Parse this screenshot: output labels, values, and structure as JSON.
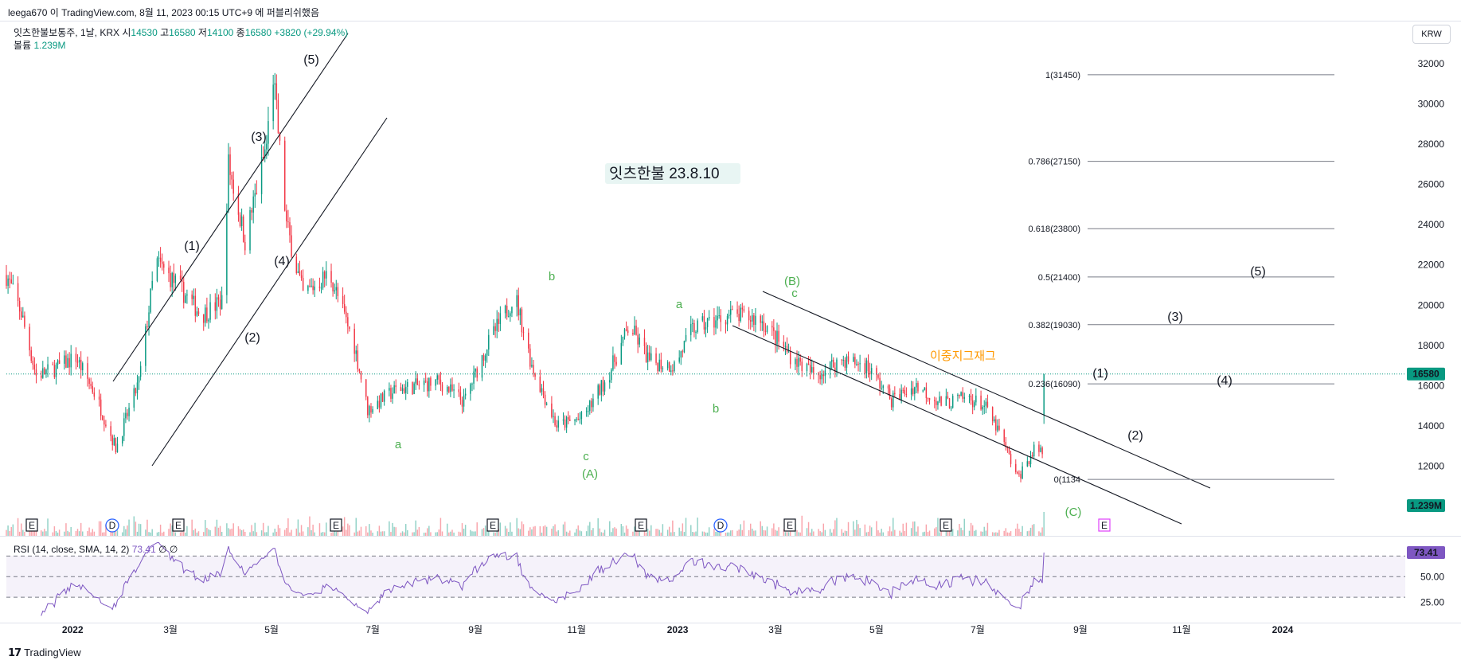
{
  "header": {
    "published": "leega670 이 TradingView.com, 8월 11, 2023 00:15 UTC+9 에 퍼블리쉬했음"
  },
  "legend": {
    "symbol": "잇츠한불보통주, 1날, KRX",
    "open_label": "시",
    "open": "14530",
    "high_label": "고",
    "high": "16580",
    "low_label": "저",
    "low": "14100",
    "close_label": "종",
    "close": "16580",
    "change": "+3820 (+29.94%)",
    "volume_label": "볼륨",
    "volume": "1.239M"
  },
  "rsi_legend": {
    "label": "RSI (14, close, SMA, 14, 2)",
    "value": "73.41",
    "extra": "∅ ∅"
  },
  "currency_button": "KRW",
  "footer": {
    "brand": "TradingView"
  },
  "colors": {
    "up": "#089981",
    "down": "#f23645",
    "rsi": "#7e57c2",
    "annotation_green": "#4caf50",
    "annotation_orange": "#ff9800"
  },
  "chart_data": {
    "type": "candlestick",
    "title": "잇츠한불 23.8.10",
    "symbol": "잇츠한불보통주",
    "interval": "1날",
    "x_labels": [
      "2022",
      "3월",
      "5월",
      "7월",
      "9월",
      "11월",
      "2023",
      "3월",
      "5월",
      "7월",
      "9월",
      "11월",
      "2024"
    ],
    "y_ticks": [
      10000,
      12000,
      14000,
      16000,
      18000,
      20000,
      22000,
      24000,
      26000,
      28000,
      30000,
      32000
    ],
    "ylim": [
      9200,
      32600
    ],
    "last_price": "16580",
    "volume_last": "1.239M",
    "price_path": [
      [
        "2021-11-22",
        21500
      ],
      [
        "2021-12-01",
        19600
      ],
      [
        "2021-12-10",
        16500
      ],
      [
        "2021-12-20",
        16800
      ],
      [
        "2022-01-03",
        17400
      ],
      [
        "2022-01-15",
        15500
      ],
      [
        "2022-01-27",
        12900
      ],
      [
        "2022-02-10",
        16200
      ],
      [
        "2022-02-20",
        22200
      ],
      [
        "2022-03-05",
        21000
      ],
      [
        "2022-03-20",
        19500
      ],
      [
        "2022-04-01",
        20200
      ],
      [
        "2022-04-05",
        27000
      ],
      [
        "2022-04-15",
        23200
      ],
      [
        "2022-04-28",
        28000
      ],
      [
        "2022-05-02",
        31400
      ],
      [
        "2022-05-10",
        24000
      ],
      [
        "2022-05-20",
        20500
      ],
      [
        "2022-06-05",
        21600
      ],
      [
        "2022-06-20",
        18000
      ],
      [
        "2022-06-28",
        14800
      ],
      [
        "2022-07-15",
        15800
      ],
      [
        "2022-08-10",
        16200
      ],
      [
        "2022-08-25",
        15200
      ],
      [
        "2022-09-08",
        18000
      ],
      [
        "2022-09-25",
        20500
      ],
      [
        "2022-10-05",
        17000
      ],
      [
        "2022-10-20",
        14000
      ],
      [
        "2022-11-05",
        14400
      ],
      [
        "2022-11-20",
        16500
      ],
      [
        "2022-12-03",
        19000
      ],
      [
        "2022-12-15",
        17200
      ],
      [
        "2022-12-30",
        17000
      ],
      [
        "2023-01-10",
        18800
      ],
      [
        "2023-02-01",
        19500
      ],
      [
        "2023-02-20",
        19300
      ],
      [
        "2023-03-10",
        17500
      ],
      [
        "2023-03-25",
        16500
      ],
      [
        "2023-04-10",
        17300
      ],
      [
        "2023-04-25",
        17000
      ],
      [
        "2023-05-10",
        15300
      ],
      [
        "2023-05-25",
        16000
      ],
      [
        "2023-06-10",
        15100
      ],
      [
        "2023-06-25",
        15400
      ],
      [
        "2023-07-05",
        15000
      ],
      [
        "2023-07-15",
        13500
      ],
      [
        "2023-07-25",
        11400
      ],
      [
        "2023-08-05",
        12900
      ],
      [
        "2023-08-09",
        12760
      ],
      [
        "2023-08-10",
        16580
      ]
    ],
    "rsi": {
      "label": "RSI (14, close, SMA, 14, 2)",
      "value": 73.41,
      "levels": [
        70,
        50,
        30
      ],
      "ticks": [
        "73.41",
        "50.00",
        "25.00"
      ]
    },
    "fibonacci": [
      {
        "level": "1",
        "price": 31450,
        "label": "1(31450)"
      },
      {
        "level": "0.786",
        "price": 27150,
        "label": "0.786(27150)"
      },
      {
        "level": "0.618",
        "price": 23800,
        "label": "0.618(23800)"
      },
      {
        "level": "0.5",
        "price": 21400,
        "label": "0.5(21400)"
      },
      {
        "level": "0.382",
        "price": 19030,
        "label": "0.382(19030)"
      },
      {
        "level": "0.236",
        "price": 16090,
        "label": "0.236(16090)"
      },
      {
        "level": "0",
        "price": 11340,
        "label": "0(1134"
      }
    ],
    "annotations": {
      "impulse_2022": [
        "(1)",
        "(2)",
        "(3)",
        "(4)",
        "(5)"
      ],
      "correction_green": [
        "a",
        "b",
        "c",
        "(A)",
        "a",
        "b",
        "(B)",
        "c",
        "(C)"
      ],
      "projection": [
        "(1)",
        "(2)",
        "(3)",
        "(4)",
        "(5)"
      ],
      "pattern_note": "이중지그재그"
    },
    "event_markers": [
      "E",
      "D",
      "E",
      "E",
      "E",
      "E",
      "D",
      "E",
      "E",
      "E"
    ]
  }
}
